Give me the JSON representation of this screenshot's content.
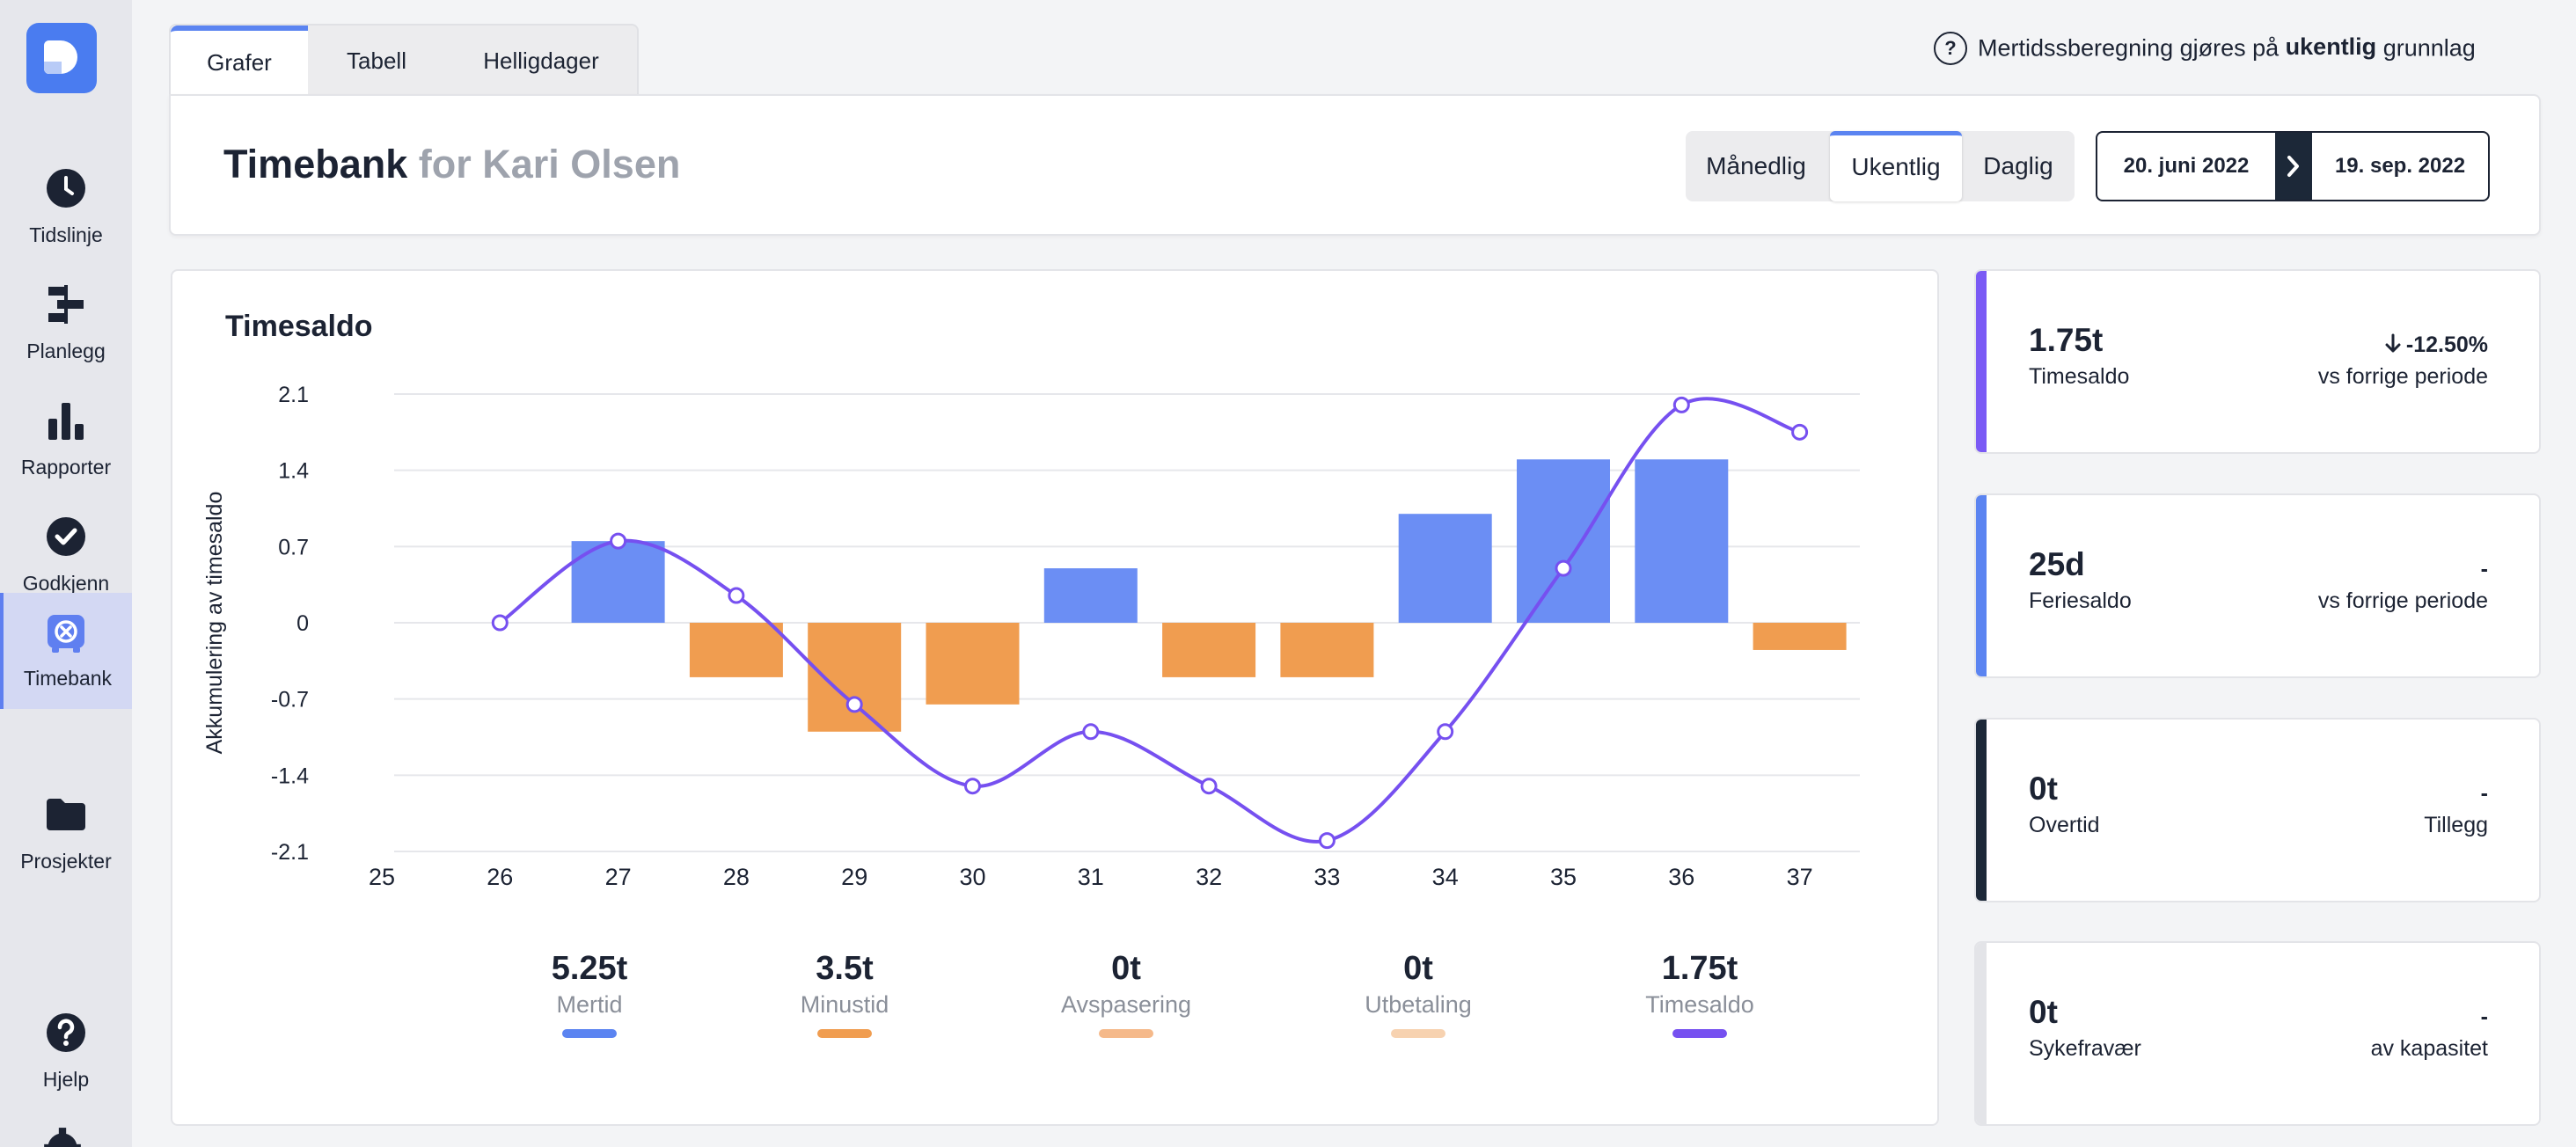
{
  "sidebar": {
    "items": [
      {
        "label": "Tidslinje",
        "icon": "clock-icon"
      },
      {
        "label": "Planlegg",
        "icon": "plan-icon"
      },
      {
        "label": "Rapporter",
        "icon": "bar-chart-icon"
      },
      {
        "label": "Godkjenn",
        "icon": "check-circle-icon"
      },
      {
        "label": "Timebank",
        "icon": "timebank-icon",
        "active": true
      },
      {
        "label": "Prosjekter",
        "icon": "folder-icon"
      },
      {
        "label": "Hjelp",
        "icon": "help-icon"
      }
    ]
  },
  "tabs": [
    {
      "label": "Grafer",
      "active": true
    },
    {
      "label": "Tabell"
    },
    {
      "label": "Helligdager"
    }
  ],
  "info_note": {
    "prefix": "Mertidssberegning gjøres på ",
    "bold": "ukentlig",
    "suffix": " grunnlag"
  },
  "header": {
    "title": "Timebank",
    "subtitle": "for Kari Olsen",
    "period_options": [
      "Månedlig",
      "Ukentlig",
      "Daglig"
    ],
    "period_selected": "Ukentlig",
    "date_from": "20. juni 2022",
    "date_to": "19. sep. 2022"
  },
  "chart_data": {
    "type": "bar",
    "title": "Timesaldo",
    "xlabel": "",
    "ylabel": "Akkumulering av timesaldo",
    "ylim": [
      -2.1,
      2.1
    ],
    "yticks": [
      "2.1",
      "1.4",
      "0.7",
      "0",
      "-0.7",
      "-1.4",
      "-2.1"
    ],
    "categories": [
      "25",
      "26",
      "27",
      "28",
      "29",
      "30",
      "31",
      "32",
      "33",
      "34",
      "35",
      "36",
      "37"
    ],
    "series": [
      {
        "name": "Mertid",
        "type": "bar",
        "color": "#6b8ef4",
        "values": [
          0,
          0,
          0.75,
          0,
          0,
          0,
          0.5,
          0,
          0,
          1.0,
          1.5,
          1.5,
          0
        ]
      },
      {
        "name": "Minustid",
        "type": "bar",
        "color": "#f09d50",
        "values": [
          0,
          0,
          0,
          -0.5,
          -1.0,
          -0.75,
          0,
          -0.5,
          -0.5,
          0,
          0,
          0,
          -0.25
        ]
      },
      {
        "name": "Timesaldo",
        "type": "line",
        "color": "#7650f0",
        "values": [
          null,
          0,
          0.75,
          0.25,
          -0.75,
          -1.5,
          -1.0,
          -1.5,
          -2.0,
          -1.0,
          0.5,
          2.0,
          1.75
        ]
      }
    ],
    "legend": [
      {
        "value": "5.25t",
        "name": "Mertid",
        "color": "#5b84f1"
      },
      {
        "value": "3.5t",
        "name": "Minustid",
        "color": "#f09d50"
      },
      {
        "value": "0t",
        "name": "Avspasering",
        "color": "#f5b98a"
      },
      {
        "value": "0t",
        "name": "Utbetaling",
        "color": "#f7d2b0"
      },
      {
        "value": "1.75t",
        "name": "Timesaldo",
        "color": "#7650f0"
      }
    ]
  },
  "stats": [
    {
      "value": "1.75t",
      "label": "Timesaldo",
      "delta": "-12.50%",
      "compare": "vs forrige periode",
      "accent": "#7a5af5",
      "arrow": true
    },
    {
      "value": "25d",
      "label": "Feriesaldo",
      "delta": "-",
      "compare": "vs forrige periode",
      "accent": "#5b84f1"
    },
    {
      "value": "0t",
      "label": "Overtid",
      "delta": "-",
      "compare": "Tillegg",
      "accent": "#1c2838"
    },
    {
      "value": "0t",
      "label": "Sykefravær",
      "delta": "-",
      "compare": "av kapasitet",
      "accent": "#e3e4e8"
    }
  ]
}
